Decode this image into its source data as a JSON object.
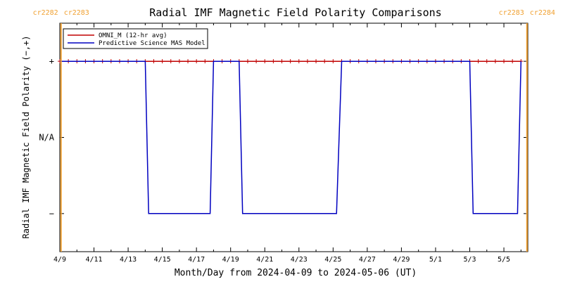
{
  "chart_data": {
    "type": "line",
    "title": "Radial IMF Magnetic Field Polarity Comparisons",
    "xlabel": "Month/Day from 2024-04-09 to 2024-05-06 (UT)",
    "ylabel": "Radial IMF Magnetic Field Polarity (−,+)",
    "x_unit": "days from 2024-04-09 00:00 UT",
    "xlim": [
      0,
      27.4
    ],
    "ylim": [
      -1.5,
      1.5
    ],
    "y_ticks": [
      {
        "value": 1,
        "label": "+"
      },
      {
        "value": 0,
        "label": "N/A"
      },
      {
        "value": -1,
        "label": "−"
      }
    ],
    "x_ticks": [
      {
        "value": 0,
        "label": "4/9"
      },
      {
        "value": 2,
        "label": "4/11"
      },
      {
        "value": 4,
        "label": "4/13"
      },
      {
        "value": 6,
        "label": "4/15"
      },
      {
        "value": 8,
        "label": "4/17"
      },
      {
        "value": 10,
        "label": "4/19"
      },
      {
        "value": 12,
        "label": "4/21"
      },
      {
        "value": 14,
        "label": "4/23"
      },
      {
        "value": 16,
        "label": "4/25"
      },
      {
        "value": 18,
        "label": "4/27"
      },
      {
        "value": 20,
        "label": "4/29"
      },
      {
        "value": 22,
        "label": "5/1"
      },
      {
        "value": 24,
        "label": "5/3"
      },
      {
        "value": 26,
        "label": "5/5"
      }
    ],
    "carrington_markers": [
      {
        "x": 0.07,
        "label_left": "cr2282",
        "label_right": "cr2283"
      },
      {
        "x": 27.35,
        "label_left": "cr2283",
        "label_right": "cr2284"
      }
    ],
    "legend": {
      "position": "top-left"
    },
    "series": [
      {
        "name": "OMNI_M (12-hr avg)",
        "color": "#c00000",
        "markers": "plus",
        "x": [
          0.0,
          0.5,
          1.0,
          1.5,
          2.0,
          2.5,
          3.0,
          3.5,
          4.0,
          4.5,
          5.0,
          5.5,
          6.0,
          6.5,
          7.0,
          7.5,
          8.0,
          8.5,
          9.0,
          9.5,
          10.0,
          10.5,
          11.0,
          11.5,
          12.0,
          12.5,
          13.0,
          13.5,
          14.0,
          14.5,
          15.0,
          15.5,
          16.0,
          16.5,
          17.0,
          17.5,
          18.0,
          18.5,
          19.0,
          19.5,
          20.0,
          20.5,
          21.0,
          21.5,
          22.0,
          22.5,
          23.0,
          23.5,
          24.0,
          24.5,
          25.0,
          25.5,
          26.0,
          26.5,
          27.0
        ],
        "y": [
          1,
          1,
          1,
          1,
          1,
          1,
          1,
          1,
          1,
          1,
          1,
          1,
          1,
          1,
          1,
          1,
          1,
          1,
          1,
          1,
          1,
          1,
          1,
          1,
          1,
          1,
          1,
          1,
          1,
          1,
          1,
          1,
          1,
          1,
          1,
          1,
          1,
          1,
          1,
          1,
          1,
          1,
          1,
          1,
          1,
          1,
          1,
          1,
          1,
          1,
          1,
          1,
          1,
          1,
          1
        ]
      },
      {
        "name": "Predictive Science MAS Model",
        "color": "#0000c0",
        "markers": "none",
        "x": [
          0.0,
          5.0,
          5.2,
          8.8,
          9.0,
          10.5,
          10.7,
          16.2,
          16.5,
          24.0,
          24.2,
          26.8,
          27.0
        ],
        "y": [
          1,
          1,
          -1,
          -1,
          1,
          1,
          -1,
          -1,
          1,
          1,
          -1,
          -1,
          1
        ]
      }
    ]
  }
}
